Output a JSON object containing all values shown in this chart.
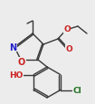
{
  "bg_color": "#ececec",
  "bond_color": "#383838",
  "atom_colors": {
    "N": "#2020cc",
    "O": "#cc2020",
    "Cl": "#207020",
    "C": "#383838"
  },
  "figsize": [
    1.05,
    1.16
  ],
  "dpi": 100,
  "lw": 1.0
}
